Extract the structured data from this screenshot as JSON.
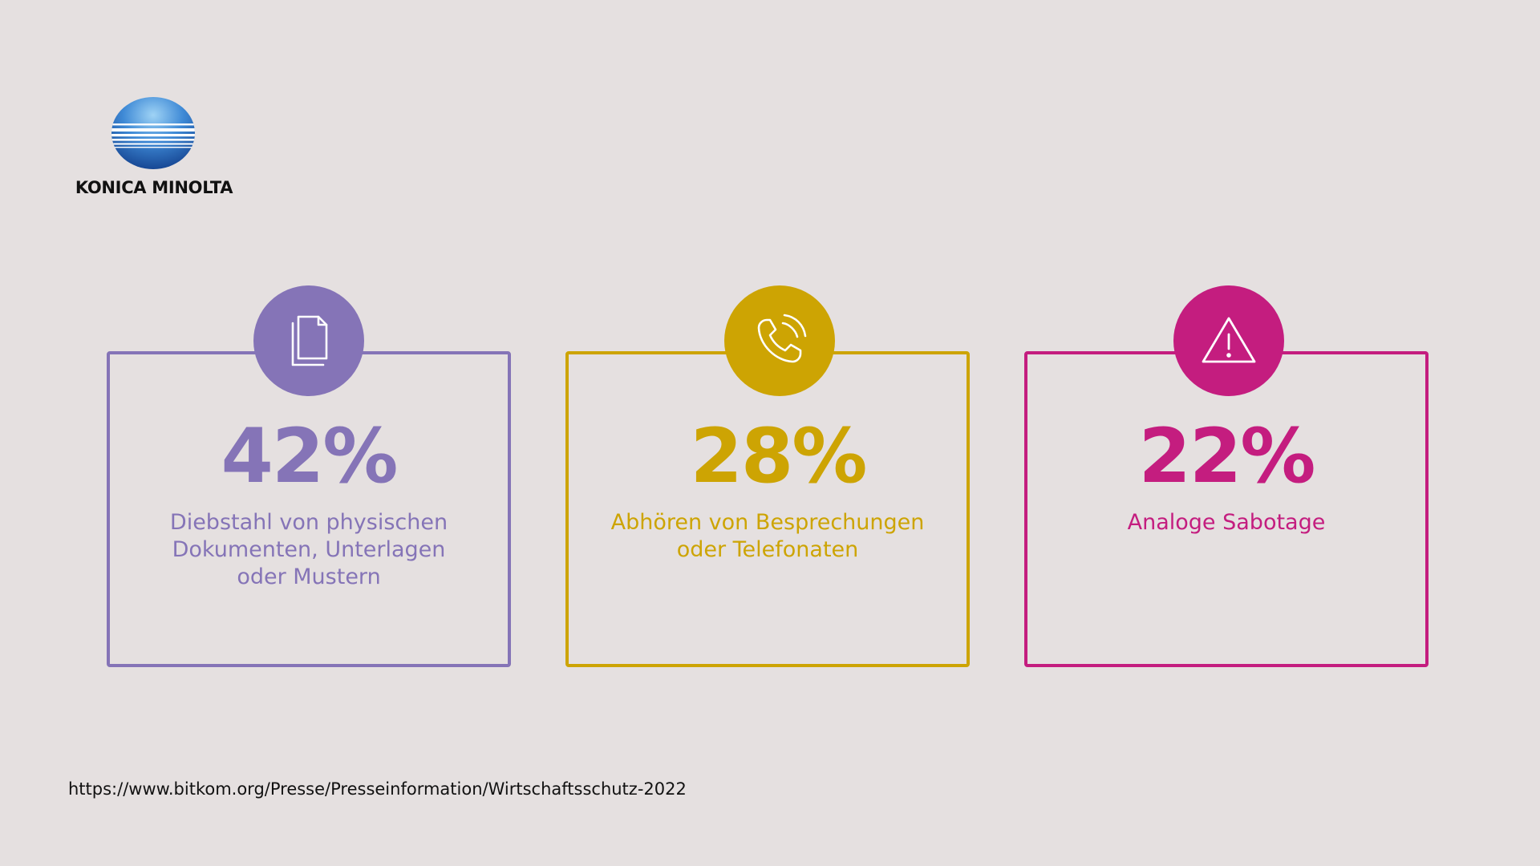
{
  "logo": {
    "text": "KONICA MINOLTA",
    "icon": "konica-minolta-globe-icon",
    "colors": {
      "globe_top": "#6fb4e6",
      "globe_bottom": "#1a55a8"
    }
  },
  "cards": [
    {
      "value": "42%",
      "caption_lines": [
        "Diebstahl von physischen",
        "Dokumenten, Unterlagen",
        "oder Mustern"
      ],
      "icon": "documents-icon",
      "color": "#8574b7"
    },
    {
      "value": "28%",
      "caption_lines": [
        "Abhören von Besprechungen",
        "oder Telefonaten"
      ],
      "icon": "phone-call-icon",
      "color": "#cda403"
    },
    {
      "value": "22%",
      "caption_lines": [
        "Analoge Sabotage"
      ],
      "icon": "warning-icon",
      "color": "#c41d7f"
    }
  ],
  "source": "https://www.bitkom.org/Presse/Presseinformation/Wirtschaftsschutz-2022"
}
